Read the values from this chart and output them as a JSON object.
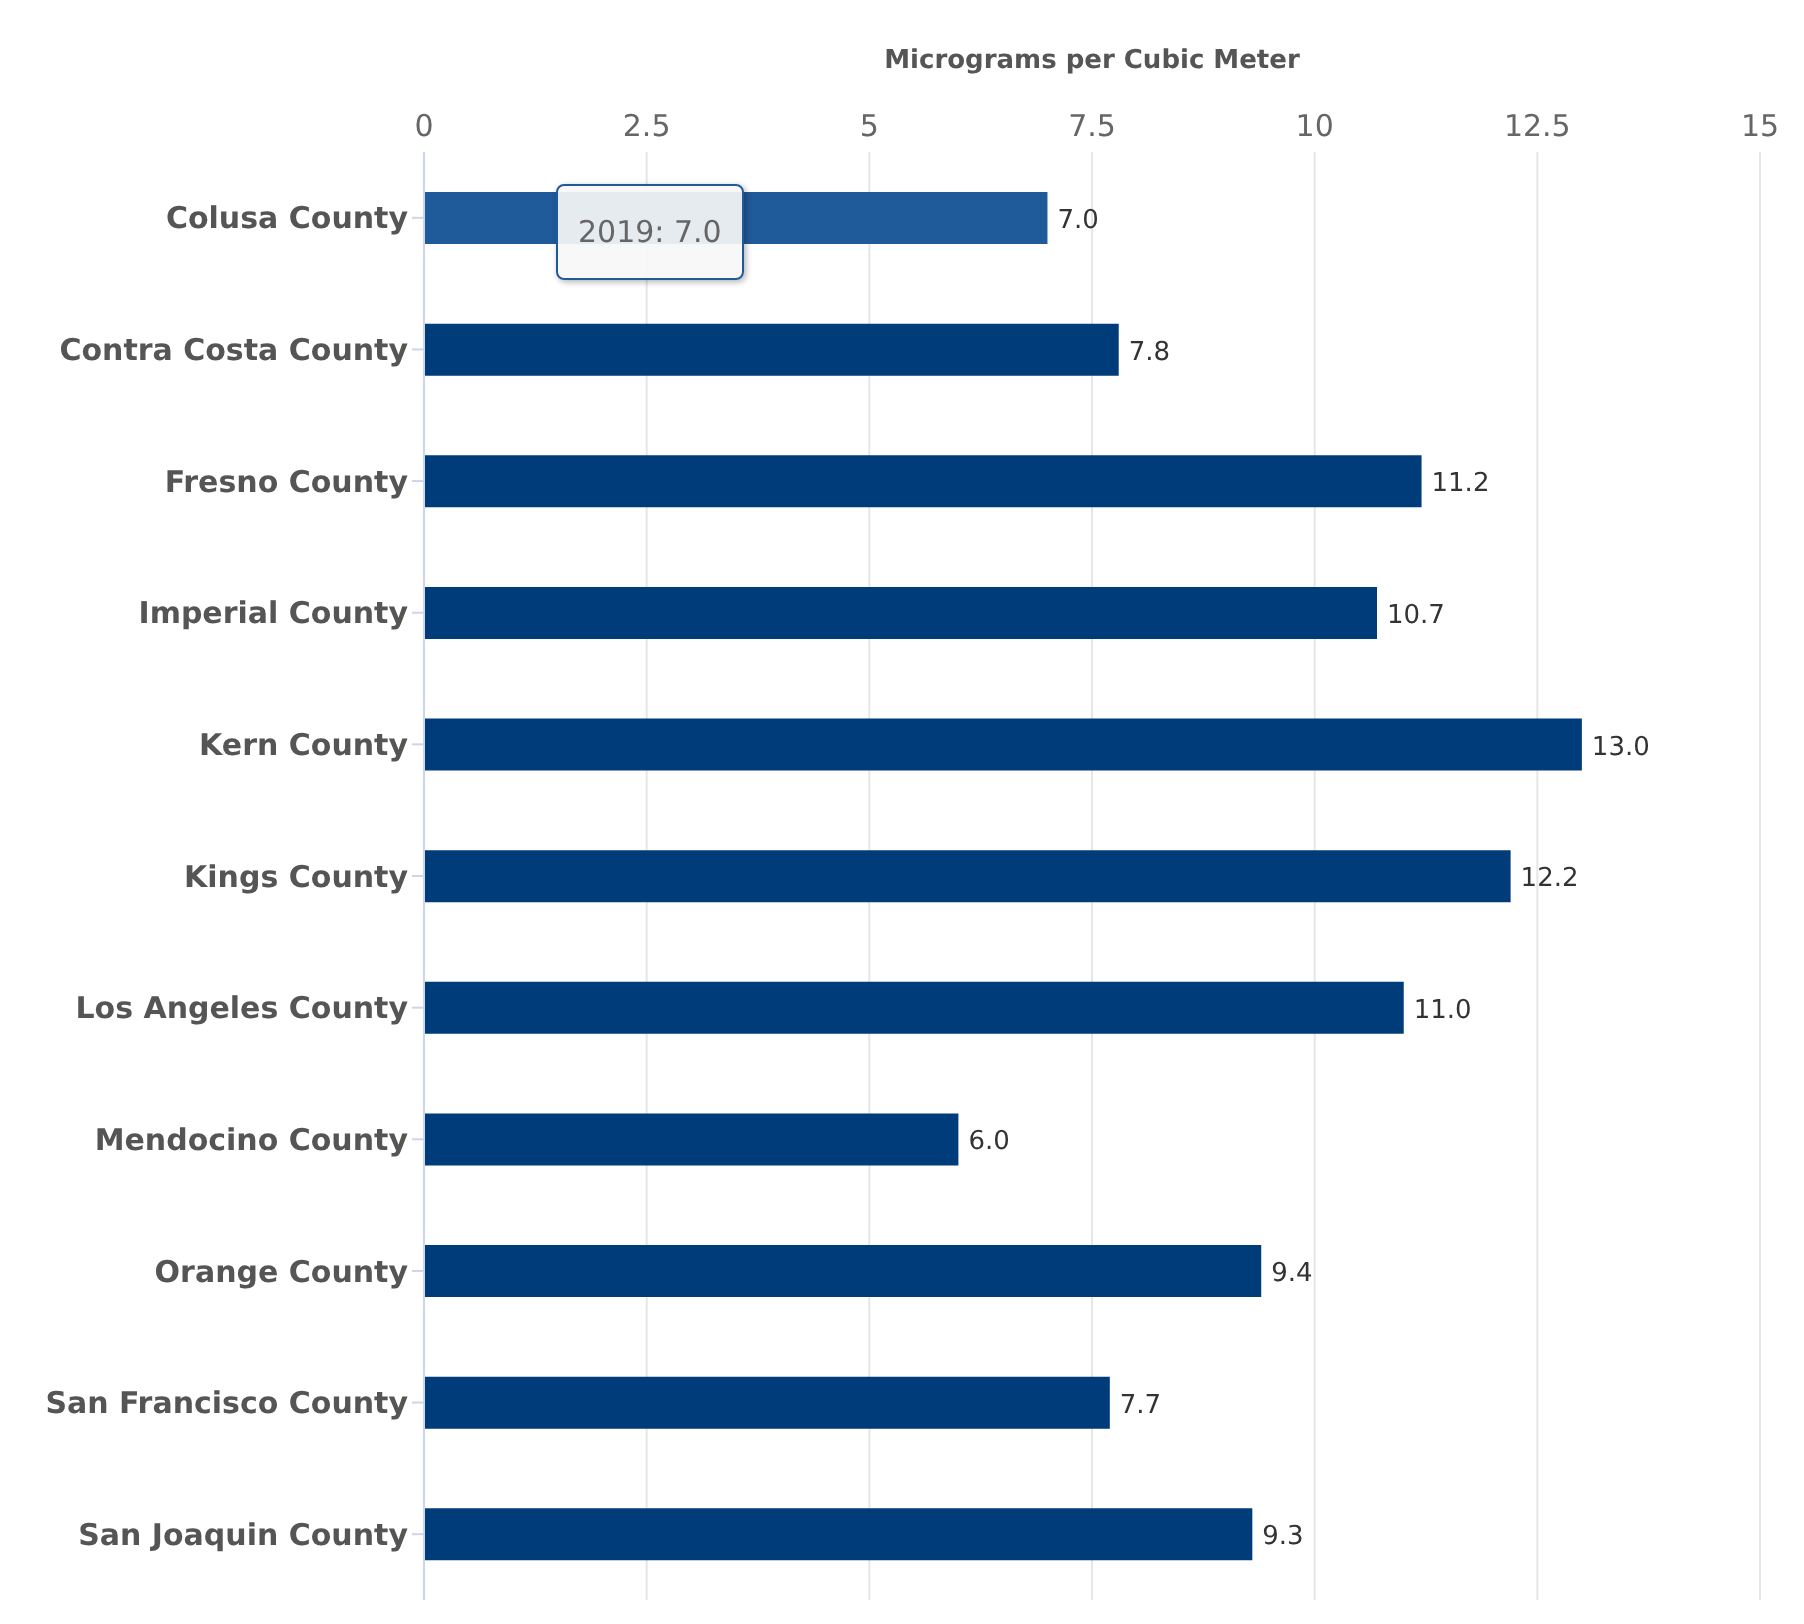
{
  "chart_data": {
    "type": "bar",
    "orientation": "horizontal",
    "xlabel": "Micrograms per Cubic Meter",
    "categories": [
      "Colusa County",
      "Contra Costa County",
      "Fresno County",
      "Imperial County",
      "Kern County",
      "Kings County",
      "Los Angeles County",
      "Mendocino County",
      "Orange County",
      "San Francisco County",
      "San Joaquin County"
    ],
    "values": [
      7.0,
      7.8,
      11.2,
      10.7,
      13.0,
      12.2,
      11.0,
      6.0,
      9.4,
      7.7,
      9.3
    ],
    "value_labels": [
      "7.0",
      "7.8",
      "11.2",
      "10.7",
      "13.0",
      "12.2",
      "11.0",
      "6.0",
      "9.4",
      "7.7",
      "9.3"
    ],
    "colors": [
      "#1f5a9a",
      "#003b7a",
      "#003b7a",
      "#003b7a",
      "#003b7a",
      "#003b7a",
      "#003b7a",
      "#003b7a",
      "#003b7a",
      "#003b7a",
      "#003b7a"
    ],
    "xlim": [
      0,
      15
    ],
    "xticks": [
      0,
      2.5,
      5,
      7.5,
      10,
      12.5,
      15
    ],
    "grid": "x",
    "annotations": [
      "2019: 7.0"
    ]
  }
}
